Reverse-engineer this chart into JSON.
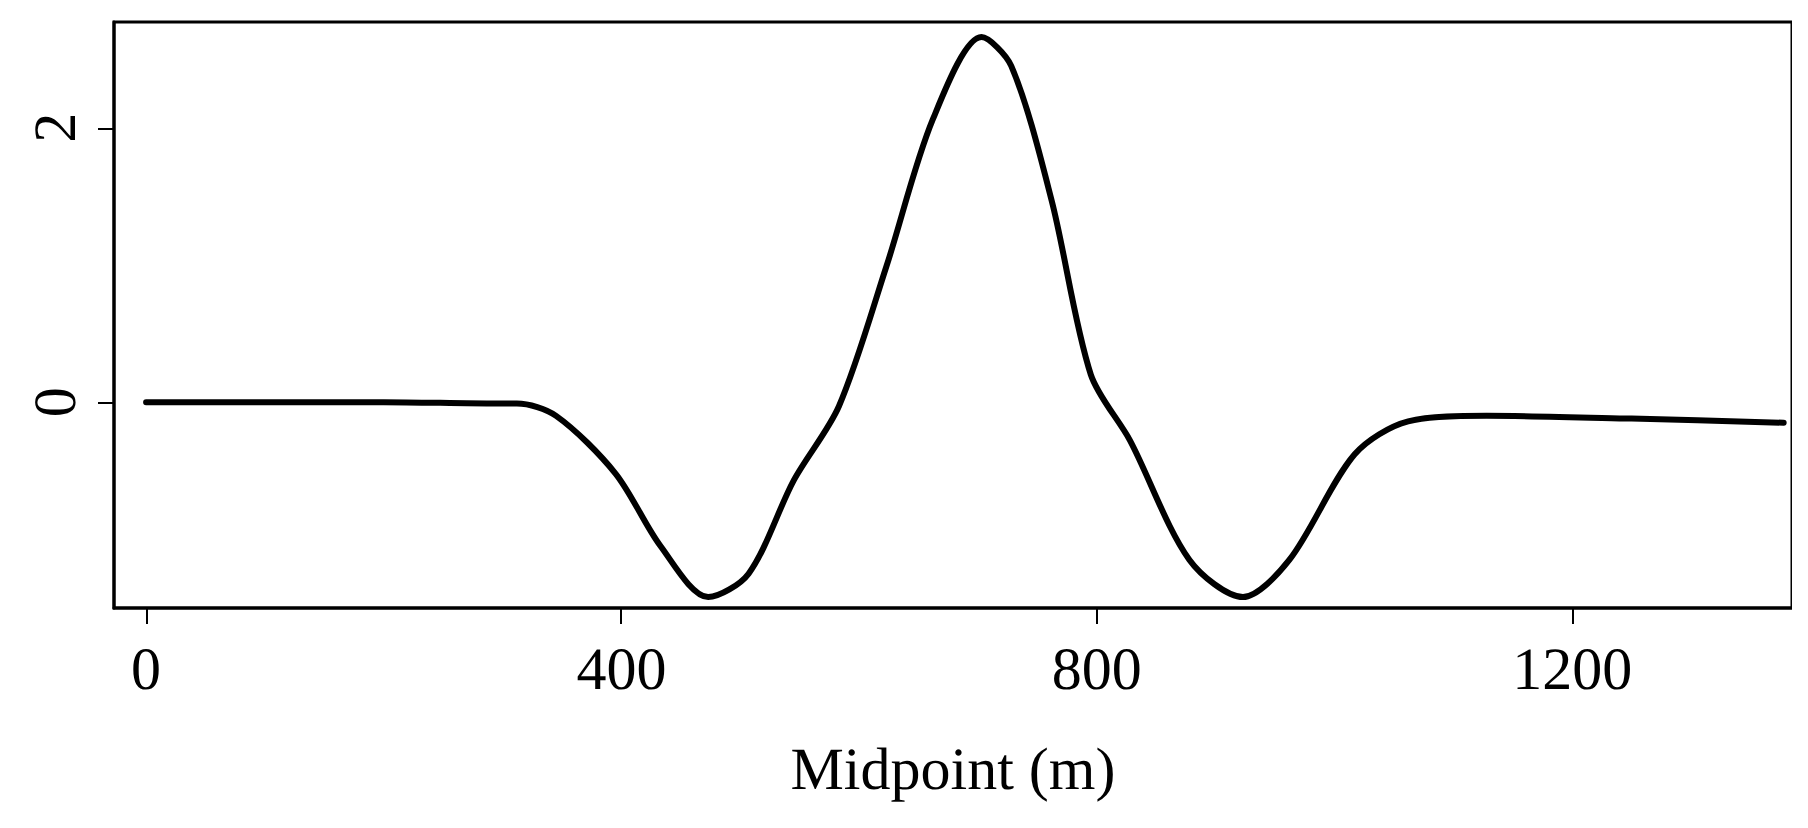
{
  "chart_data": {
    "type": "line",
    "xlabel": "Midpoint (m)",
    "xlim": [
      -27,
      1385
    ],
    "xticks": [
      0,
      400,
      800,
      1200
    ],
    "ylim": [
      -1.5,
      2.77
    ],
    "yticks": [
      0,
      2
    ],
    "grid": false,
    "marker": "none",
    "line_style": "solid",
    "series": [
      {
        "color": "#000000",
        "x": [
          0,
          100,
          200,
          295,
          312,
          345,
          395,
          433,
          473,
          507,
          545,
          583,
          623,
          662,
          703,
          728,
          762,
          795,
          828,
          878,
          923,
          962,
          1017,
          1062,
          1128,
          1250,
          1378
        ],
        "values": [
          0,
          0,
          0,
          -0.01,
          -0.01,
          -0.1,
          -0.52,
          -1.05,
          -1.42,
          -1.25,
          -0.57,
          -0.03,
          0.99,
          2.06,
          2.66,
          2.45,
          1.47,
          0.2,
          -0.28,
          -1.15,
          -1.42,
          -1.15,
          -0.38,
          -0.14,
          -0.1,
          -0.12,
          -0.15
        ]
      }
    ]
  }
}
